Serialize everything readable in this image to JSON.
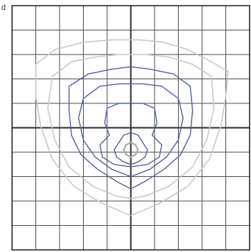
{
  "chart_data": {
    "type": "contour",
    "title": "",
    "xlabel": "",
    "ylabel": "",
    "xlim": [
      -5,
      5
    ],
    "ylim": [
      -5,
      5
    ],
    "grid": true,
    "colors": {
      "grid": "#4a4a4a",
      "axis": "#2a2a2a",
      "frame": "#1a1a1a",
      "outer_contours": "#c8c8c8",
      "inner_contours": "#4a5ea8",
      "core": "#a8a8a8"
    },
    "contours": [
      {
        "level": "outer-1",
        "style": "light",
        "points": [
          [
            -4.0,
            2.6
          ],
          [
            -3.2,
            3.2
          ],
          [
            -2.0,
            3.5
          ],
          [
            -0.8,
            3.6
          ],
          [
            0.4,
            3.6
          ],
          [
            1.4,
            3.5
          ],
          [
            2.4,
            3.2
          ],
          [
            3.4,
            2.7
          ],
          [
            4.1,
            2.3
          ],
          [
            4.0,
            1.3
          ],
          [
            3.8,
            0.1
          ],
          [
            3.3,
            -1.3
          ],
          [
            2.4,
            -2.4
          ],
          [
            1.2,
            -3.1
          ],
          [
            0.0,
            -3.6
          ],
          [
            -1.2,
            -3.1
          ],
          [
            -2.4,
            -2.4
          ],
          [
            -3.3,
            -1.3
          ],
          [
            -3.8,
            0.1
          ],
          [
            -4.0,
            1.3
          ],
          [
            -4.0,
            2.6
          ]
        ]
      },
      {
        "level": "outer-2",
        "style": "light",
        "points": [
          [
            -3.3,
            2.1
          ],
          [
            -2.5,
            2.7
          ],
          [
            -1.5,
            2.9
          ],
          [
            -0.5,
            3.0
          ],
          [
            0.6,
            3.0
          ],
          [
            1.6,
            2.9
          ],
          [
            2.6,
            2.6
          ],
          [
            3.4,
            2.1
          ],
          [
            3.5,
            0.8
          ],
          [
            3.2,
            -0.5
          ],
          [
            2.6,
            -1.6
          ],
          [
            1.6,
            -2.4
          ],
          [
            0.6,
            -2.8
          ],
          [
            0.0,
            -2.9
          ],
          [
            -0.6,
            -2.8
          ],
          [
            -1.6,
            -2.4
          ],
          [
            -2.6,
            -1.6
          ],
          [
            -3.2,
            -0.5
          ],
          [
            -3.5,
            0.8
          ],
          [
            -3.3,
            2.1
          ]
        ]
      },
      {
        "level": "inner-1",
        "style": "blue",
        "points": [
          [
            -2.6,
            1.7
          ],
          [
            -1.8,
            2.2
          ],
          [
            -0.8,
            2.4
          ],
          [
            0.0,
            2.5
          ],
          [
            0.8,
            2.4
          ],
          [
            1.8,
            2.2
          ],
          [
            2.5,
            1.7
          ],
          [
            2.6,
            0.7
          ],
          [
            2.5,
            -0.3
          ],
          [
            2.1,
            -1.1
          ],
          [
            1.4,
            -1.7
          ],
          [
            0.6,
            -2.2
          ],
          [
            0.0,
            -2.5
          ],
          [
            -0.6,
            -2.2
          ],
          [
            -1.4,
            -1.7
          ],
          [
            -2.1,
            -1.1
          ],
          [
            -2.5,
            -0.3
          ],
          [
            -2.6,
            0.7
          ],
          [
            -2.6,
            1.7
          ]
        ]
      },
      {
        "level": "inner-2",
        "style": "blue",
        "points": [
          [
            -2.0,
            1.2
          ],
          [
            -1.3,
            1.7
          ],
          [
            -0.5,
            1.8
          ],
          [
            0.0,
            1.8
          ],
          [
            0.5,
            1.8
          ],
          [
            1.3,
            1.7
          ],
          [
            2.0,
            1.2
          ],
          [
            2.2,
            0.4
          ],
          [
            2.0,
            -0.5
          ],
          [
            1.5,
            -1.2
          ],
          [
            0.8,
            -1.7
          ],
          [
            0.0,
            -2.0
          ],
          [
            -0.8,
            -1.7
          ],
          [
            -1.5,
            -1.2
          ],
          [
            -2.0,
            -0.5
          ],
          [
            -2.2,
            0.4
          ],
          [
            -2.0,
            1.2
          ]
        ]
      },
      {
        "level": "inner-3",
        "style": "blue",
        "points": [
          [
            -1.0,
            0.8
          ],
          [
            -0.5,
            1.0
          ],
          [
            0.0,
            1.0
          ],
          [
            0.5,
            1.0
          ],
          [
            1.0,
            0.8
          ],
          [
            1.1,
            0.2
          ],
          [
            0.9,
            -0.3
          ],
          [
            1.3,
            -0.7
          ],
          [
            1.2,
            -1.2
          ],
          [
            0.7,
            -1.5
          ],
          [
            0.0,
            -1.6
          ],
          [
            -0.7,
            -1.5
          ],
          [
            -1.2,
            -1.2
          ],
          [
            -1.3,
            -0.7
          ],
          [
            -0.9,
            -0.3
          ],
          [
            -1.1,
            0.2
          ],
          [
            -1.0,
            0.8
          ]
        ]
      },
      {
        "level": "inner-4",
        "style": "blue",
        "points": [
          [
            -0.3,
            -0.3
          ],
          [
            0.0,
            -0.2
          ],
          [
            0.3,
            -0.3
          ],
          [
            0.5,
            -0.6
          ],
          [
            0.7,
            -0.9
          ],
          [
            0.6,
            -1.2
          ],
          [
            0.3,
            -1.4
          ],
          [
            0.0,
            -1.5
          ],
          [
            -0.3,
            -1.4
          ],
          [
            -0.6,
            -1.2
          ],
          [
            -0.7,
            -0.9
          ],
          [
            -0.5,
            -0.6
          ],
          [
            -0.3,
            -0.3
          ]
        ]
      },
      {
        "level": "core",
        "style": "core",
        "points": [
          [
            0.0,
            -0.6
          ],
          [
            0.2,
            -0.7
          ],
          [
            0.3,
            -0.9
          ],
          [
            0.2,
            -1.1
          ],
          [
            0.0,
            -1.2
          ],
          [
            -0.2,
            -1.1
          ],
          [
            -0.3,
            -0.9
          ],
          [
            -0.2,
            -0.7
          ],
          [
            0.0,
            -0.6
          ]
        ]
      }
    ]
  }
}
